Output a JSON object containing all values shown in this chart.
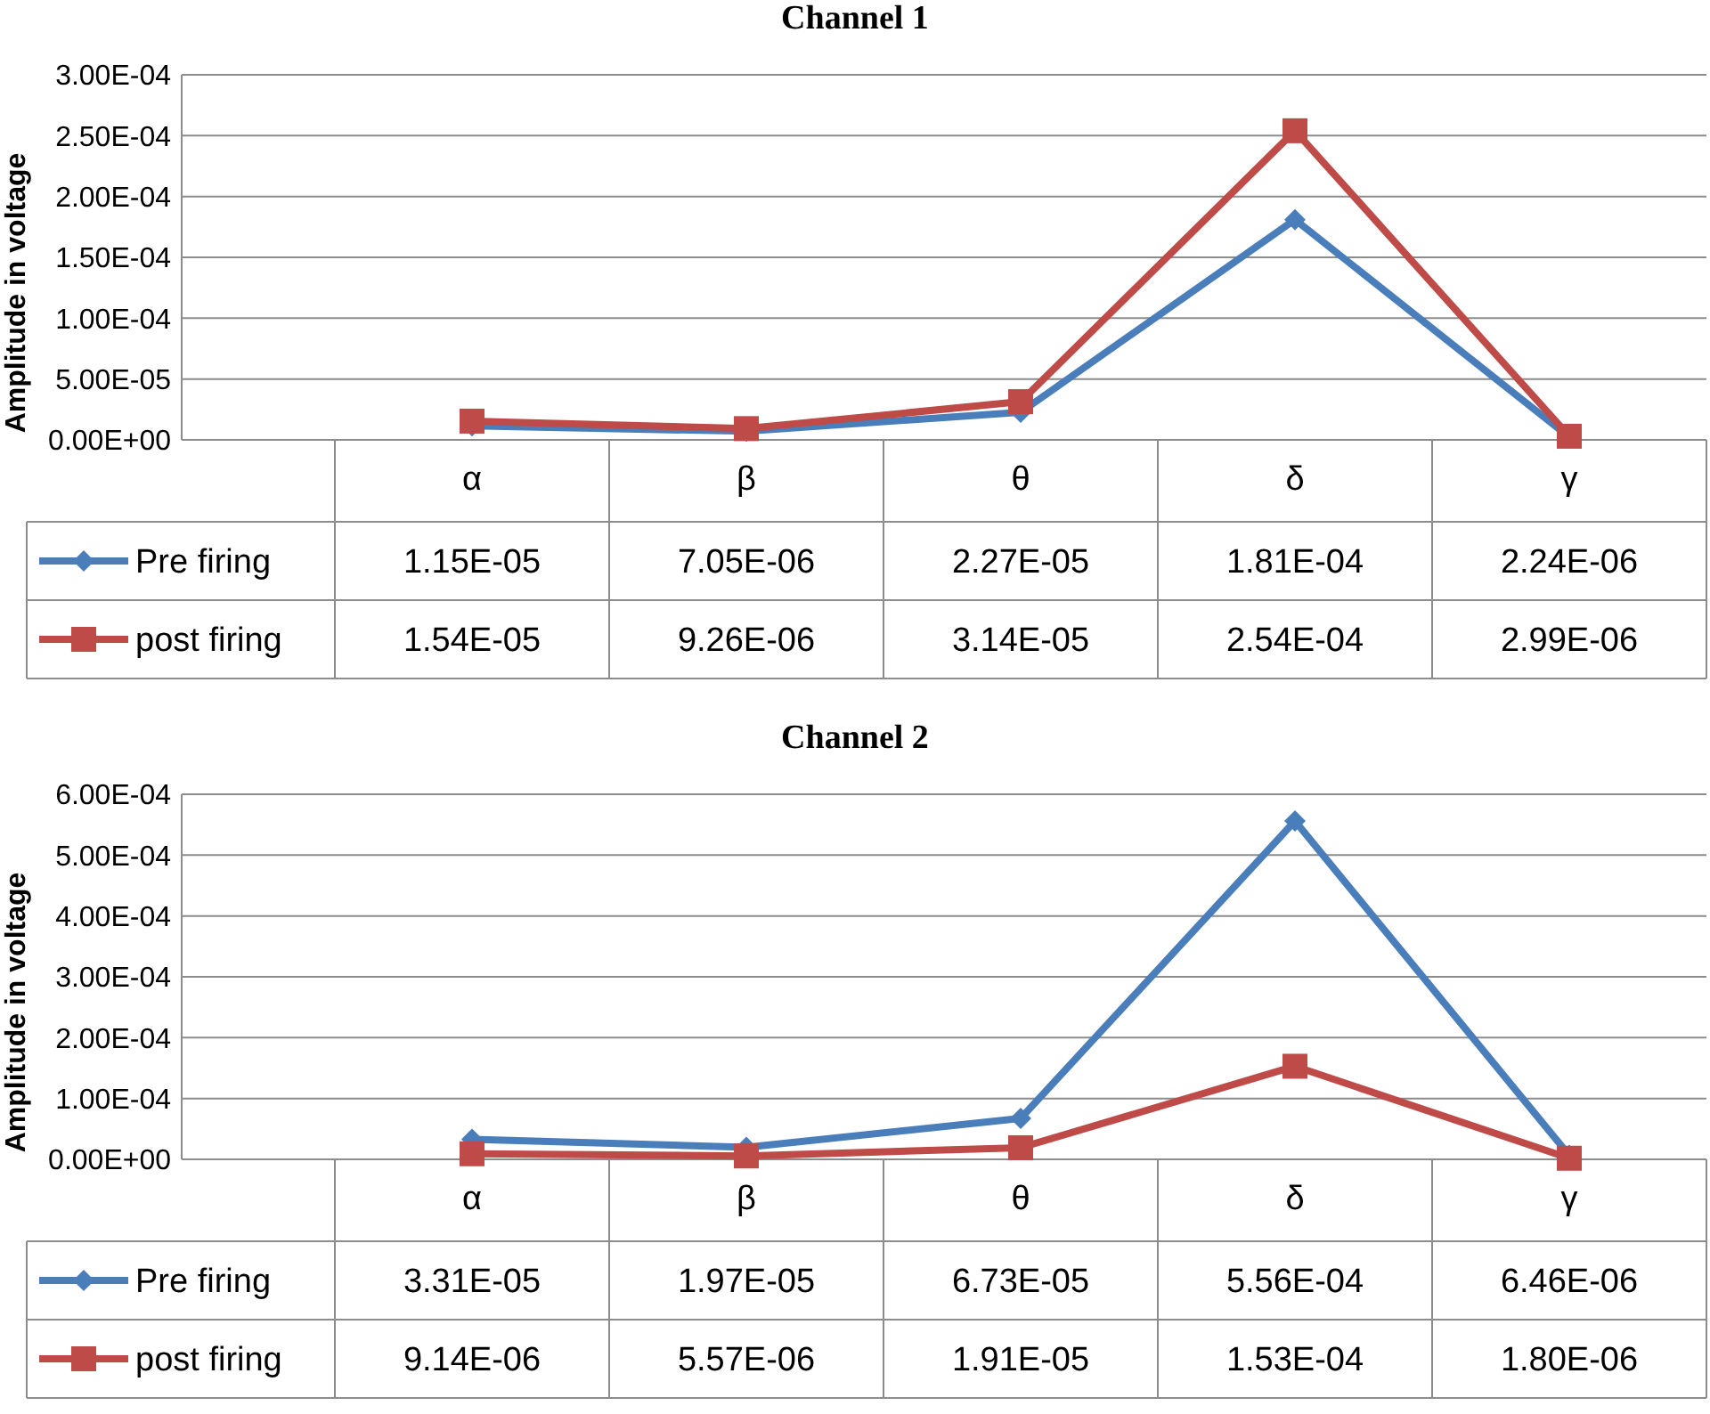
{
  "chart_data": [
    {
      "type": "line",
      "title": "Channel 1",
      "ylabel": "Amplitude in voltage",
      "categories": [
        "α",
        "β",
        "θ",
        "δ",
        "γ"
      ],
      "series": [
        {
          "name": "Pre firing",
          "color": "#4a7ebb",
          "marker": "diamond",
          "values": [
            1.15e-05,
            7.05e-06,
            2.27e-05,
            0.000181,
            2.24e-06
          ],
          "value_labels": [
            "1.15E-05",
            "7.05E-06",
            "2.27E-05",
            "1.81E-04",
            "2.24E-06"
          ]
        },
        {
          "name": "post firing",
          "color": "#be4b48",
          "marker": "square",
          "values": [
            1.54e-05,
            9.26e-06,
            3.14e-05,
            0.000254,
            2.99e-06
          ],
          "value_labels": [
            "1.54E-05",
            "9.26E-06",
            "3.14E-05",
            "2.54E-04",
            "2.99E-06"
          ]
        }
      ],
      "ylim": [
        0,
        0.0003
      ],
      "yticks": [
        {
          "value": 0,
          "label": "0.00E+00"
        },
        {
          "value": 5e-05,
          "label": "5.00E-05"
        },
        {
          "value": 0.0001,
          "label": "1.00E-04"
        },
        {
          "value": 0.00015,
          "label": "1.50E-04"
        },
        {
          "value": 0.0002,
          "label": "2.00E-04"
        },
        {
          "value": 0.00025,
          "label": "2.50E-04"
        },
        {
          "value": 0.0003,
          "label": "3.00E-04"
        }
      ],
      "grid": "y",
      "legend": "bottom left"
    },
    {
      "type": "line",
      "title": "Channel 2",
      "ylabel": "Amplitude in voltage",
      "categories": [
        "α",
        "β",
        "θ",
        "δ",
        "γ"
      ],
      "series": [
        {
          "name": "Pre firing",
          "color": "#4a7ebb",
          "marker": "diamond",
          "values": [
            3.31e-05,
            1.97e-05,
            6.73e-05,
            0.000556,
            6.46e-06
          ],
          "value_labels": [
            "3.31E-05",
            "1.97E-05",
            "6.73E-05",
            "5.56E-04",
            "6.46E-06"
          ]
        },
        {
          "name": "post firing",
          "color": "#be4b48",
          "marker": "square",
          "values": [
            9.14e-06,
            5.57e-06,
            1.91e-05,
            0.000153,
            1.8e-06
          ],
          "value_labels": [
            "9.14E-06",
            "5.57E-06",
            "1.91E-05",
            "1.53E-04",
            "1.80E-06"
          ]
        }
      ],
      "ylim": [
        0,
        0.0006
      ],
      "yticks": [
        {
          "value": 0,
          "label": "0.00E+00"
        },
        {
          "value": 0.0001,
          "label": "1.00E-04"
        },
        {
          "value": 0.0002,
          "label": "2.00E-04"
        },
        {
          "value": 0.0003,
          "label": "3.00E-04"
        },
        {
          "value": 0.0004,
          "label": "4.00E-04"
        },
        {
          "value": 0.0005,
          "label": "5.00E-04"
        },
        {
          "value": 0.0006,
          "label": "6.00E-04"
        }
      ],
      "grid": "y",
      "legend": "bottom left"
    }
  ]
}
